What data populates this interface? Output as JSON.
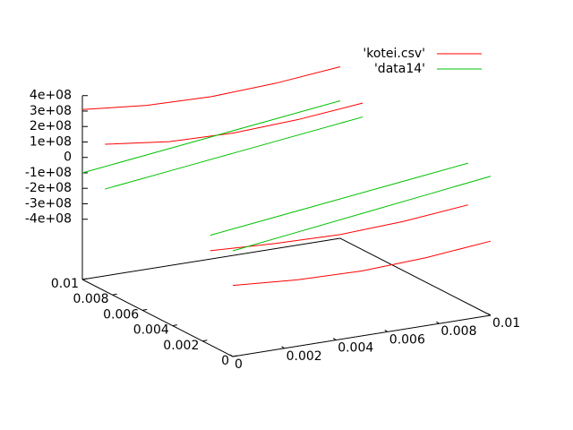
{
  "chart_data": {
    "type": "line3d",
    "x": [
      0,
      0.0025,
      0.005,
      0.0075,
      0.01
    ],
    "xlim": [
      0,
      0.01
    ],
    "xticks": [
      0,
      0.002,
      0.004,
      0.006,
      0.008,
      0.01
    ],
    "ylim": [
      0,
      0.01
    ],
    "yticks": [
      0,
      0.002,
      0.004,
      0.006,
      0.008,
      0.01
    ],
    "zlim": [
      -790000000,
      400000000
    ],
    "zticks": [
      {
        "value": 400000000,
        "label": "4e+08"
      },
      {
        "value": 300000000,
        "label": "3e+08"
      },
      {
        "value": 200000000,
        "label": "2e+08"
      },
      {
        "value": 100000000,
        "label": "1e+08"
      },
      0,
      {
        "value": -100000000,
        "label": "-1e+08"
      },
      {
        "value": -200000000,
        "label": "-2e+08"
      },
      {
        "value": -300000000,
        "label": "-3e+08"
      },
      {
        "value": -400000000,
        "label": "-4e+08"
      }
    ],
    "legend": "top-right",
    "series": [
      {
        "name": "'kotei.csv'",
        "color": "#ff0000",
        "lines": [
          {
            "y": 0.01,
            "z": [
              310000000,
              270000000,
              260000000,
              280000000,
              320000000
            ]
          },
          {
            "y": 0.0085,
            "z": [
              160000000,
              110000000,
              100000000,
              120000000,
              160000000
            ]
          },
          {
            "y": 0,
            "z": [
              -330000000,
              -360000000,
              -370000000,
              -350000000,
              -310000000
            ]
          },
          {
            "y": 0.0015,
            "z": [
              -180000000,
              -200000000,
              -210000000,
              -190000000,
              -150000000
            ]
          }
        ]
      },
      {
        "name": "'data14'",
        "color": "#00c000",
        "lines": [
          {
            "y": 0.01,
            "z": [
              -100000000,
              -50000000,
              0,
              50000000,
              100000000
            ]
          },
          {
            "y": 0.0085,
            "z": [
              -130000000,
              -80000000,
              -30000000,
              20000000,
              70000000
            ]
          },
          {
            "y": 0,
            "z": [
              -106000000,
              -52000000,
              2000000,
              56000000,
              110000000
            ]
          },
          {
            "y": 0.0015,
            "z": [
              -80000000,
              -30000000,
              20000000,
              70000000,
              120000000
            ]
          }
        ]
      }
    ]
  }
}
